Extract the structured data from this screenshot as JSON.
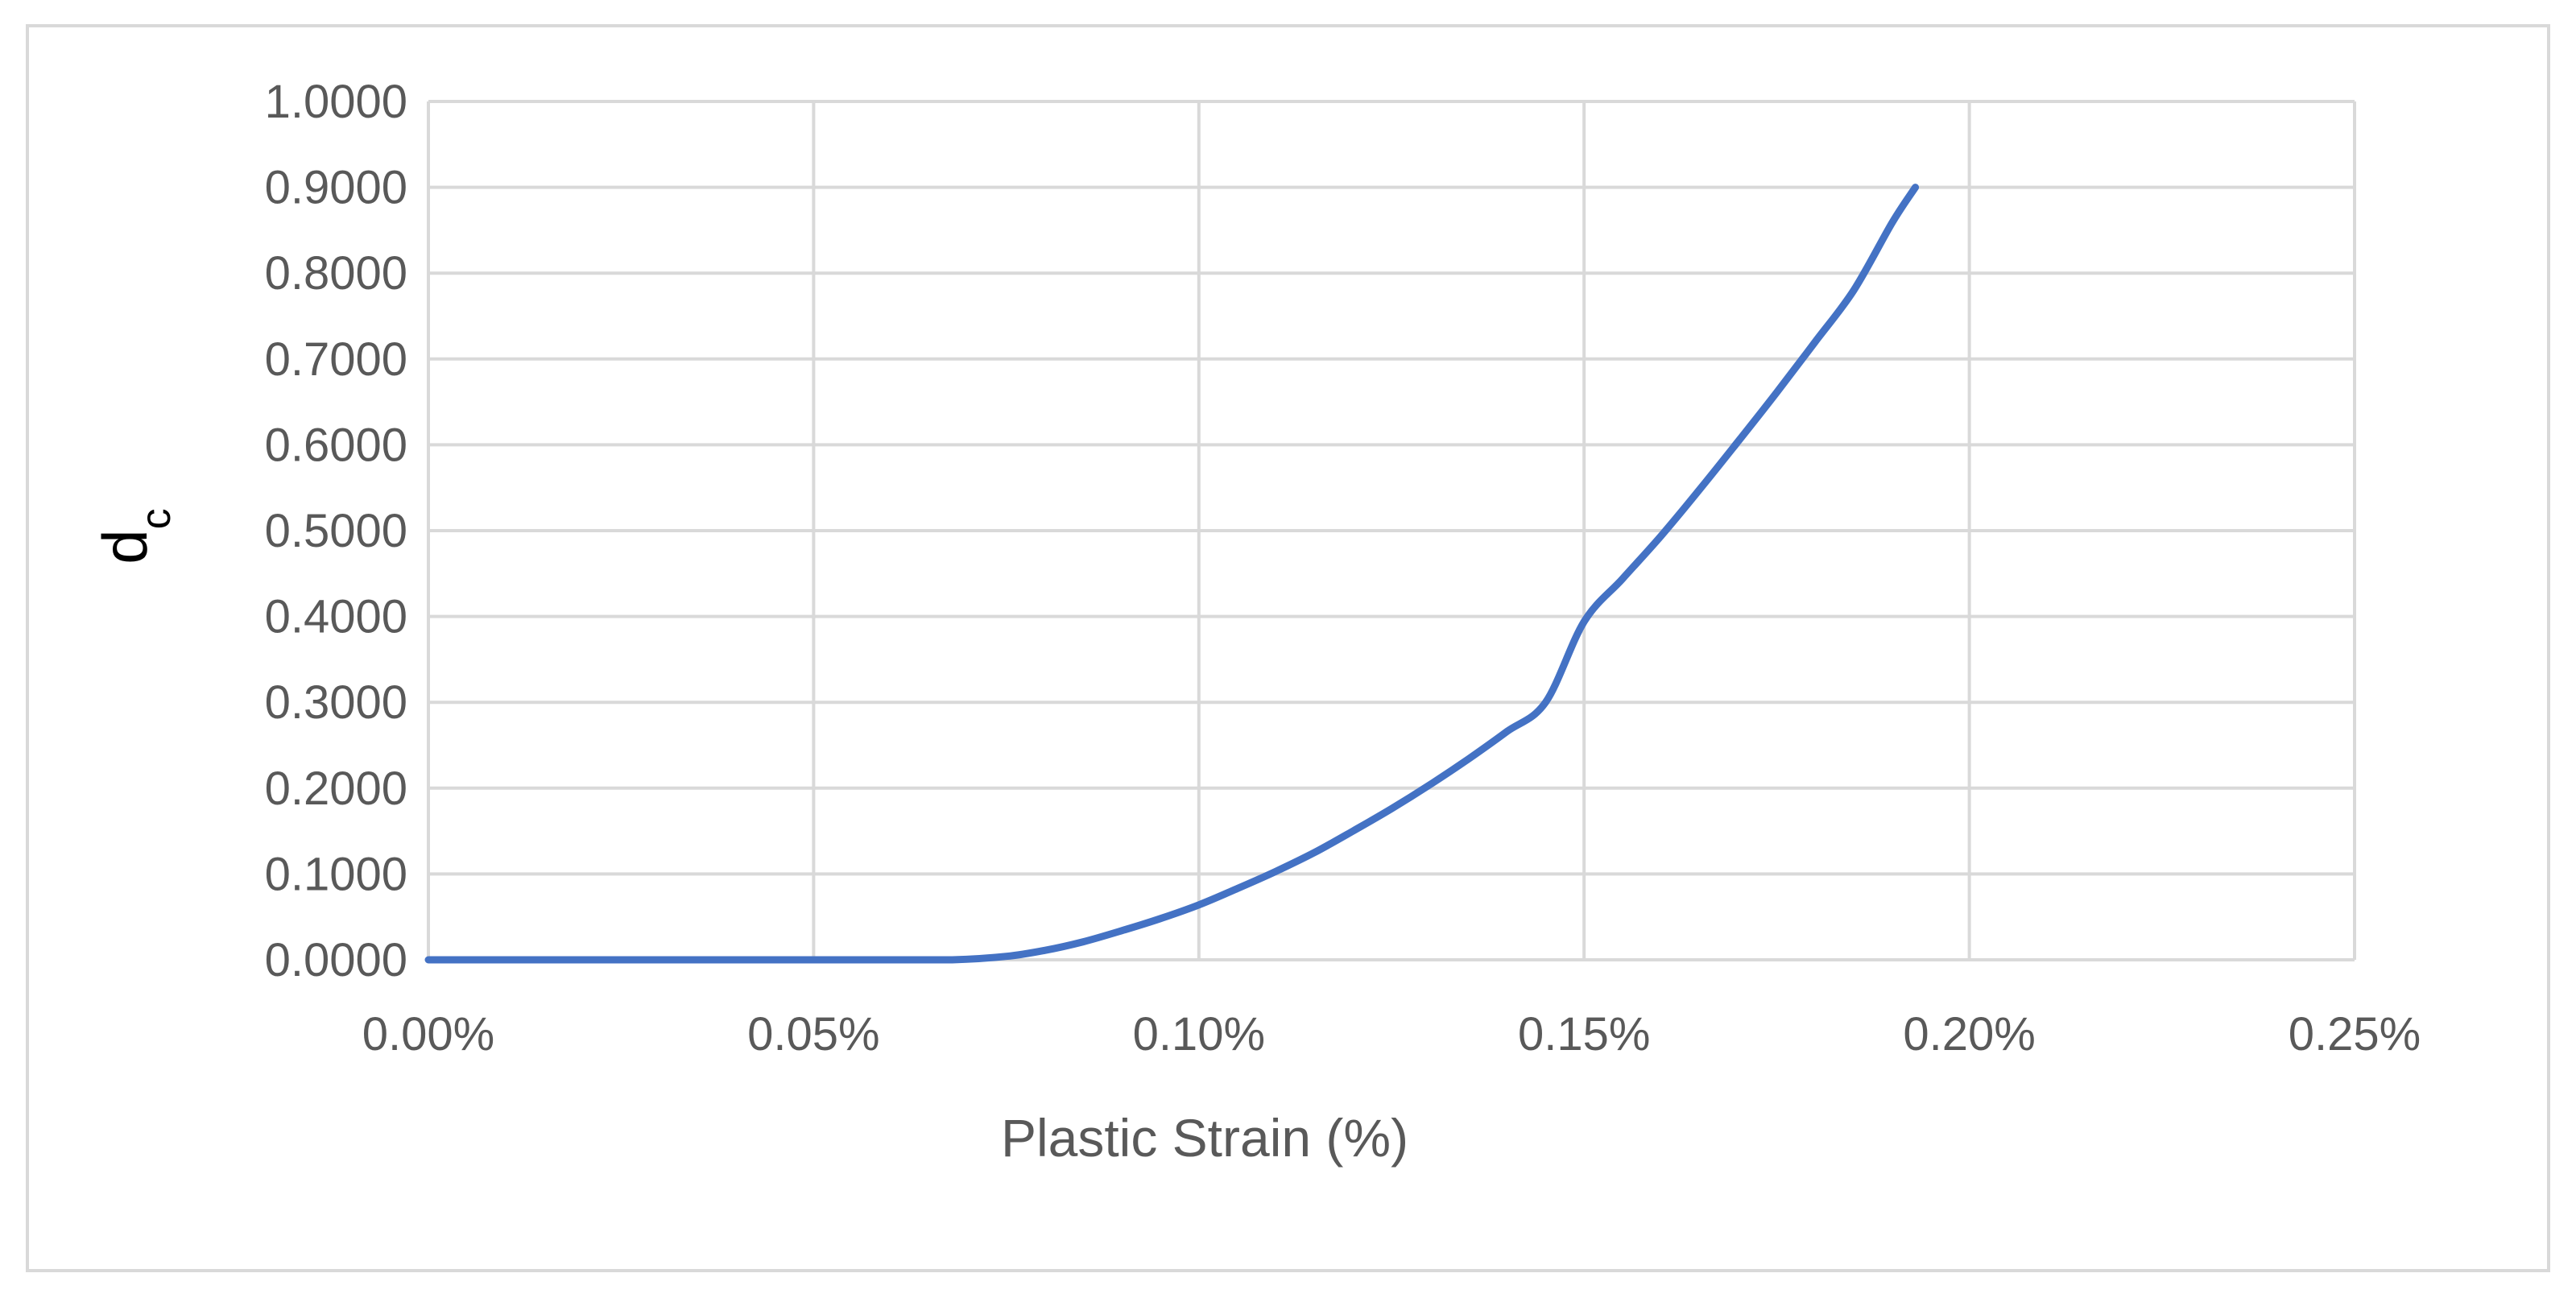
{
  "chart_data": {
    "type": "line",
    "xlabel": "Plastic Strain (%)",
    "ylabel": "d",
    "ylabel_subscript": "c",
    "xlim": [
      0,
      0.25
    ],
    "ylim": [
      0,
      1.0
    ],
    "x_ticks": [
      0,
      0.05,
      0.1,
      0.15,
      0.2,
      0.25
    ],
    "x_tick_labels": [
      "0.00%",
      "0.05%",
      "0.10%",
      "0.15%",
      "0.20%",
      "0.25%"
    ],
    "y_ticks": [
      0,
      0.1,
      0.2,
      0.3,
      0.4,
      0.5,
      0.6,
      0.7,
      0.8,
      0.9,
      1.0
    ],
    "y_tick_labels": [
      "0.0000",
      "0.1000",
      "0.2000",
      "0.3000",
      "0.4000",
      "0.5000",
      "0.6000",
      "0.7000",
      "0.8000",
      "0.9000",
      "1.0000"
    ],
    "grid": true,
    "legend": false,
    "series": [
      {
        "color": "#4472c4",
        "x": [
          0.0,
          0.02,
          0.04,
          0.06,
          0.068,
          0.075,
          0.08,
          0.085,
          0.09,
          0.095,
          0.1,
          0.105,
          0.11,
          0.115,
          0.12,
          0.125,
          0.13,
          0.135,
          0.14,
          0.145,
          0.15,
          0.155,
          0.16,
          0.165,
          0.17,
          0.175,
          0.18,
          0.185,
          0.19,
          0.193
        ],
        "y": [
          0.0,
          0.0,
          0.0,
          0.0,
          0.0,
          0.004,
          0.011,
          0.021,
          0.034,
          0.048,
          0.064,
          0.083,
          0.103,
          0.125,
          0.15,
          0.176,
          0.204,
          0.234,
          0.266,
          0.3,
          0.394,
          0.444,
          0.494,
          0.548,
          0.604,
          0.661,
          0.72,
          0.78,
          0.859,
          0.9
        ]
      }
    ]
  }
}
